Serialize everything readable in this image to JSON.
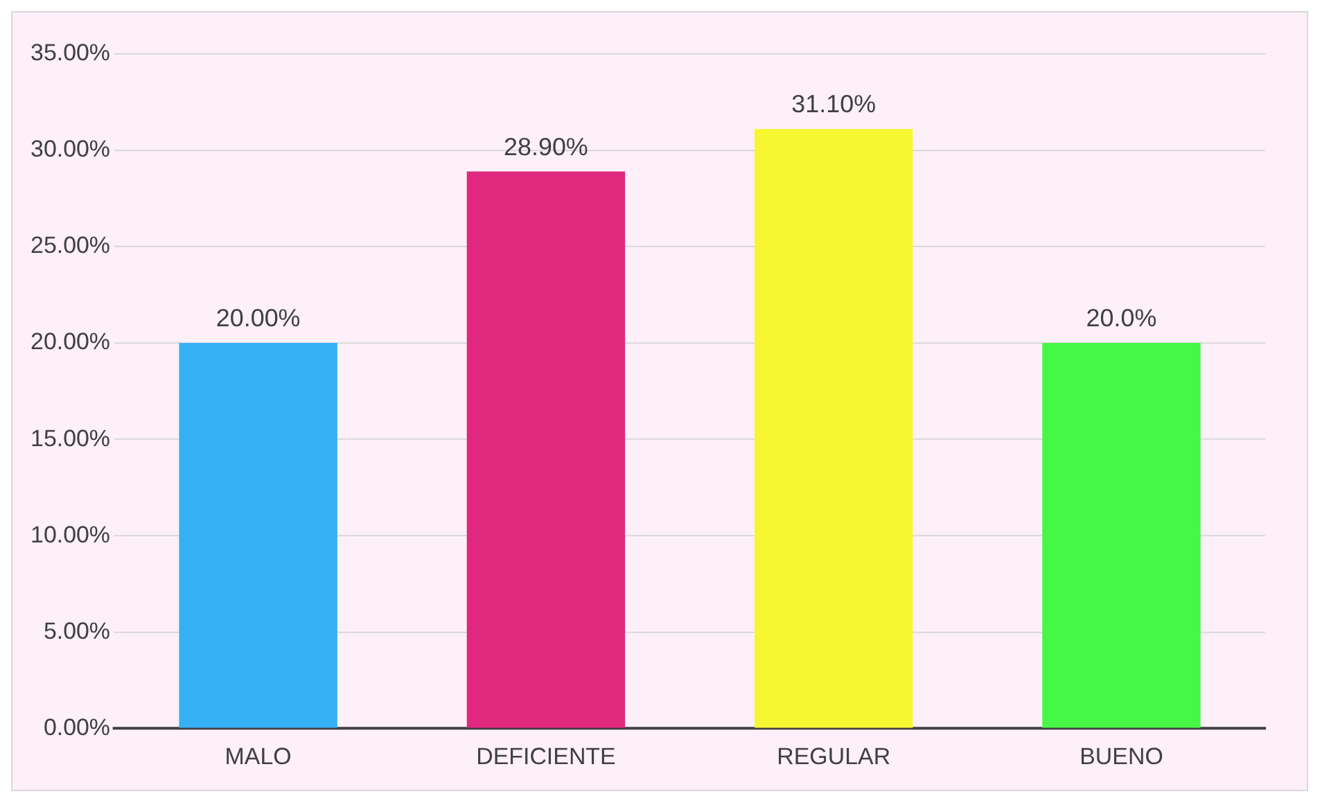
{
  "chart_data": {
    "type": "bar",
    "categories": [
      "MALO",
      "DEFICIENTE",
      "REGULAR",
      "BUENO"
    ],
    "values": [
      20,
      28.9,
      31.1,
      20
    ],
    "colors": [
      "#35b0f5",
      "#e0287f",
      "#f7f731",
      "#46f746"
    ],
    "value_labels": [
      "20.00%",
      "28.90%",
      "31.10%",
      "20.0%"
    ],
    "ylim": [
      0,
      35
    ],
    "yticks": [
      {
        "value": 0,
        "label": "0.00%"
      },
      {
        "value": 5,
        "label": "5.00%"
      },
      {
        "value": 10,
        "label": "10.00%"
      },
      {
        "value": 15,
        "label": "15.00%"
      },
      {
        "value": 20,
        "label": "20.00%"
      },
      {
        "value": 25,
        "label": "25.00%"
      },
      {
        "value": 30,
        "label": "30.00%"
      },
      {
        "value": 35,
        "label": "35.00%"
      }
    ],
    "grid": "y",
    "legend": false
  }
}
